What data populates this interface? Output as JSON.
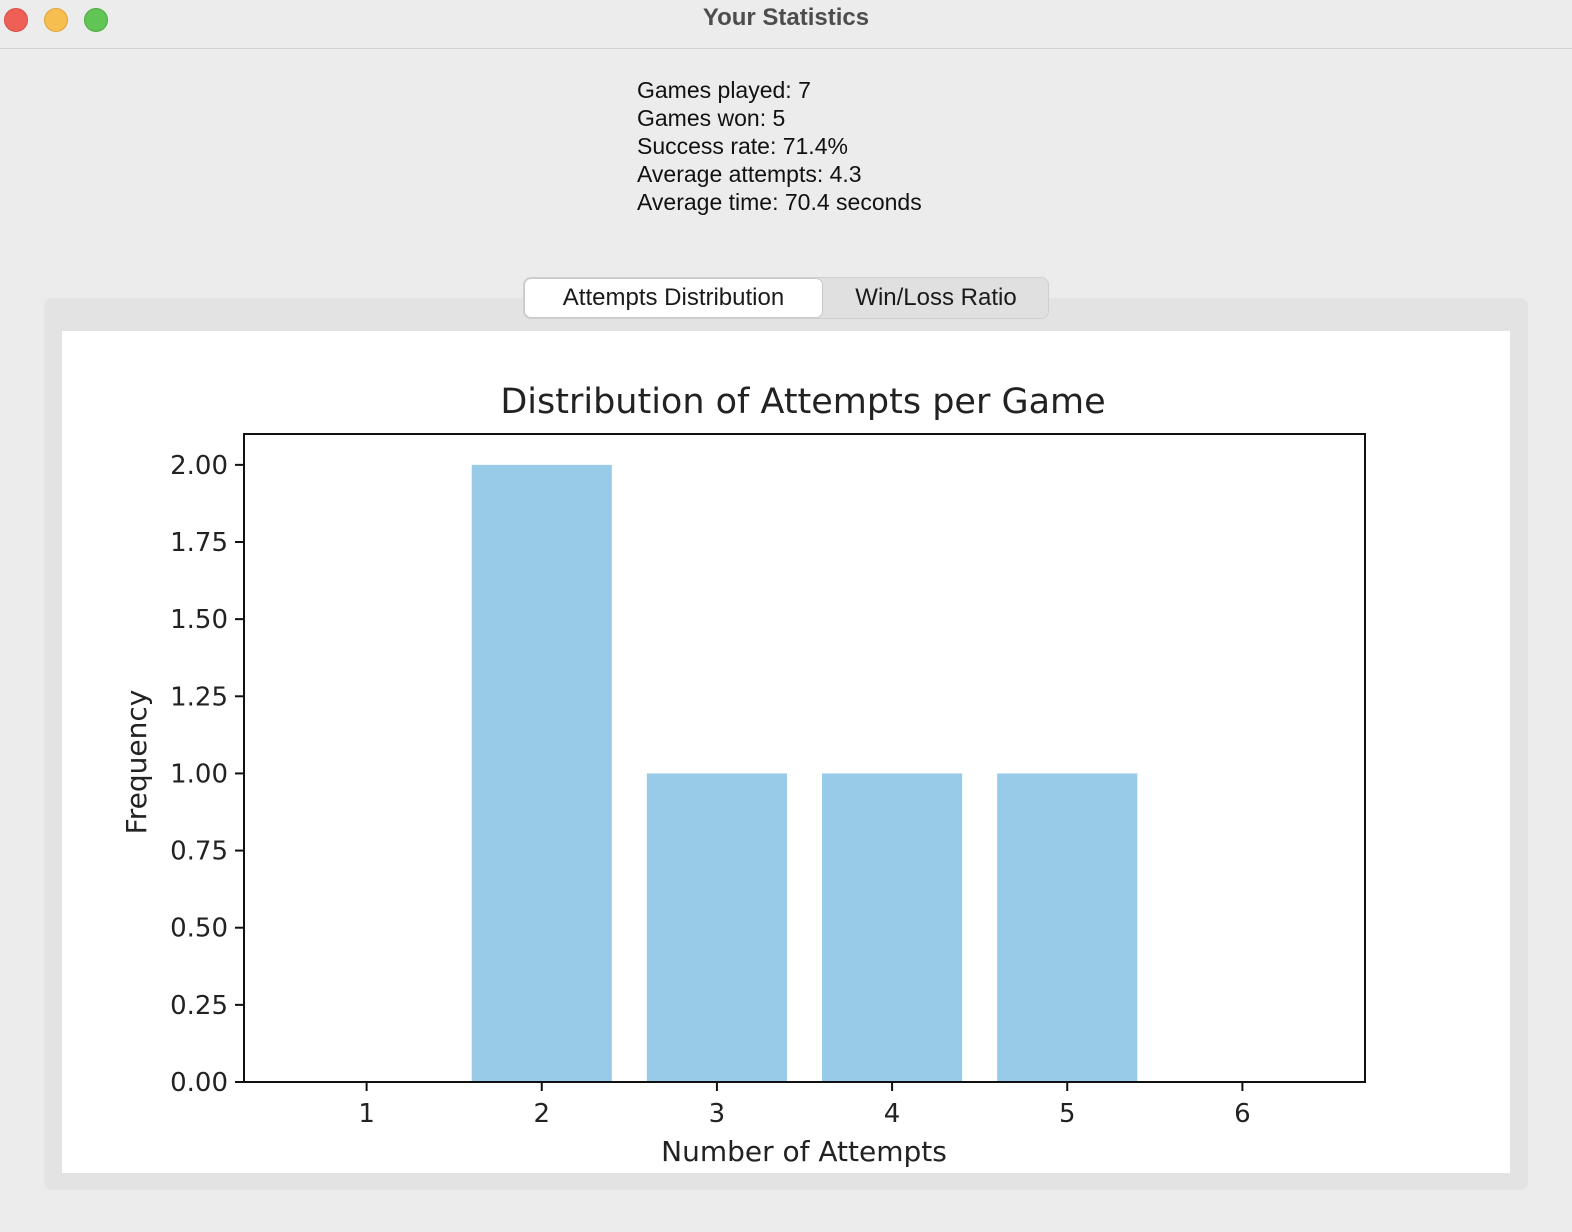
{
  "window": {
    "title": "Your Statistics"
  },
  "stats": {
    "games_played": "Games played: 7",
    "games_won": "Games won: 5",
    "success_rate": "Success rate: 71.4%",
    "average_attempts": "Average attempts: 4.3",
    "average_time": "Average time: 70.4 seconds"
  },
  "tabs": [
    {
      "label": "Attempts Distribution",
      "active": true
    },
    {
      "label": "Win/Loss Ratio",
      "active": false
    }
  ],
  "chart_data": {
    "type": "bar",
    "title": "Distribution of Attempts per Game",
    "xlabel": "Number of Attempts",
    "ylabel": "Frequency",
    "categories": [
      1,
      2,
      3,
      4,
      5,
      6
    ],
    "values": [
      0,
      2,
      1,
      1,
      1,
      0
    ],
    "xlim": [
      0.3,
      6.7
    ],
    "ylim": [
      0,
      2.1
    ],
    "yticks": [
      "0.00",
      "0.25",
      "0.50",
      "0.75",
      "1.00",
      "1.25",
      "1.50",
      "1.75",
      "2.00"
    ],
    "xticks": [
      "1",
      "2",
      "3",
      "4",
      "5",
      "6"
    ],
    "bar_color": "#97cbe8",
    "grid": false,
    "legend": false
  }
}
